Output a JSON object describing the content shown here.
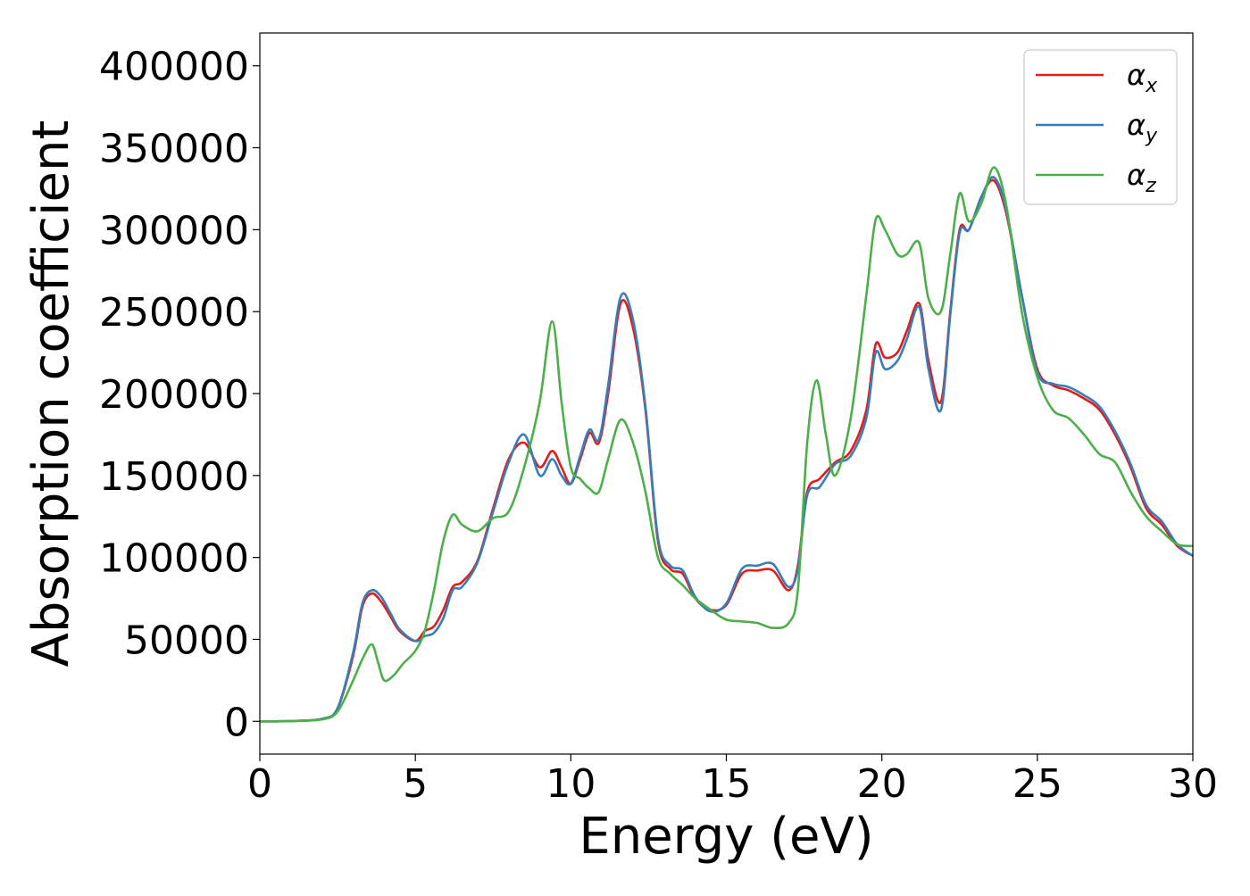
{
  "chart_data": {
    "type": "line",
    "title": "",
    "xlabel": "Energy (eV)",
    "ylabel": "Absorption coefficient",
    "xlim": [
      0,
      30
    ],
    "ylim": [
      -20000,
      420000
    ],
    "xticks": [
      0,
      5,
      10,
      15,
      20,
      25,
      30
    ],
    "xtick_labels": [
      "0",
      "5",
      "10",
      "15",
      "20",
      "25",
      "30"
    ],
    "yticks": [
      0,
      50000,
      100000,
      150000,
      200000,
      250000,
      300000,
      350000,
      400000
    ],
    "ytick_labels": [
      "0",
      "50000",
      "100000",
      "150000",
      "200000",
      "250000",
      "300000",
      "350000",
      "400000"
    ],
    "grid": false,
    "legend_position": "top-right",
    "series": [
      {
        "name": "αx",
        "legend_base": "α",
        "legend_sub": "x",
        "color": "#e41a1c",
        "x": [
          0,
          1,
          2,
          2.5,
          3,
          3.3,
          3.6,
          3.9,
          4.2,
          4.5,
          5.0,
          5.3,
          5.6,
          5.9,
          6.2,
          6.5,
          7.0,
          7.5,
          8.0,
          8.5,
          9.0,
          9.4,
          9.7,
          10.0,
          10.3,
          10.6,
          10.9,
          11.2,
          11.6,
          12.0,
          12.4,
          12.8,
          13.2,
          13.6,
          14.0,
          14.5,
          15.0,
          15.5,
          16.0,
          16.5,
          17.0,
          17.3,
          17.6,
          18.0,
          18.5,
          19.0,
          19.5,
          19.8,
          20.1,
          20.5,
          20.8,
          21.2,
          21.5,
          21.9,
          22.2,
          22.5,
          22.8,
          23.2,
          23.6,
          24.0,
          24.5,
          25.0,
          25.5,
          26.0,
          26.5,
          27.0,
          27.5,
          28.0,
          28.5,
          29.0,
          29.5,
          30.0
        ],
        "y": [
          0,
          200,
          1500,
          8000,
          40000,
          70000,
          78000,
          73000,
          64000,
          55000,
          49000,
          55000,
          58000,
          68000,
          82000,
          85000,
          98000,
          130000,
          160000,
          170000,
          155000,
          165000,
          155000,
          145000,
          160000,
          176000,
          170000,
          200000,
          255000,
          240000,
          190000,
          110000,
          93000,
          90000,
          75000,
          68000,
          71000,
          90000,
          92000,
          92000,
          80000,
          95000,
          140000,
          148000,
          158000,
          165000,
          190000,
          230000,
          222000,
          225000,
          238000,
          255000,
          220000,
          195000,
          250000,
          300000,
          300000,
          320000,
          330000,
          310000,
          260000,
          215000,
          205000,
          202000,
          197000,
          190000,
          175000,
          155000,
          130000,
          120000,
          107000,
          101000
        ]
      },
      {
        "name": "αy",
        "legend_base": "α",
        "legend_sub": "y",
        "color": "#377eb8",
        "x": [
          0,
          1,
          2,
          2.5,
          3,
          3.3,
          3.6,
          3.9,
          4.2,
          4.5,
          5.0,
          5.3,
          5.6,
          5.9,
          6.2,
          6.5,
          7.0,
          7.5,
          8.0,
          8.5,
          9.0,
          9.4,
          9.7,
          10.0,
          10.3,
          10.6,
          10.9,
          11.2,
          11.6,
          12.0,
          12.4,
          12.8,
          13.2,
          13.6,
          14.0,
          14.5,
          15.0,
          15.5,
          16.0,
          16.5,
          17.0,
          17.3,
          17.6,
          18.0,
          18.5,
          19.0,
          19.5,
          19.8,
          20.1,
          20.5,
          20.8,
          21.2,
          21.5,
          21.9,
          22.2,
          22.5,
          22.8,
          23.2,
          23.6,
          24.0,
          24.5,
          25.0,
          25.5,
          26.0,
          26.5,
          27.0,
          27.5,
          28.0,
          28.5,
          29.0,
          29.5,
          30.0
        ],
        "y": [
          0,
          200,
          1500,
          8000,
          42000,
          72000,
          80000,
          76000,
          66000,
          56000,
          49000,
          52000,
          54000,
          63000,
          80000,
          82000,
          97000,
          128000,
          158000,
          175000,
          150000,
          160000,
          150000,
          145000,
          162000,
          178000,
          172000,
          205000,
          259000,
          245000,
          192000,
          112000,
          95000,
          92000,
          76000,
          67000,
          72000,
          93000,
          95000,
          96000,
          82000,
          93000,
          138000,
          143000,
          157000,
          162000,
          185000,
          225000,
          215000,
          220000,
          233000,
          253000,
          215000,
          190000,
          248000,
          298000,
          300000,
          320000,
          332000,
          312000,
          260000,
          213000,
          206000,
          204000,
          199000,
          192000,
          177000,
          157000,
          132000,
          122000,
          108000,
          101000
        ]
      },
      {
        "name": "αz",
        "legend_base": "α",
        "legend_sub": "z",
        "color": "#4daf4a",
        "x": [
          0,
          1,
          2,
          2.5,
          3,
          3.3,
          3.6,
          3.8,
          4.0,
          4.3,
          4.6,
          5.0,
          5.3,
          5.6,
          5.9,
          6.2,
          6.5,
          7.0,
          7.5,
          8.0,
          8.5,
          9.0,
          9.4,
          9.7,
          10.0,
          10.3,
          10.6,
          10.9,
          11.2,
          11.6,
          12.0,
          12.4,
          12.8,
          13.2,
          13.6,
          14.0,
          14.5,
          15.0,
          15.5,
          16.0,
          16.5,
          17.0,
          17.3,
          17.6,
          17.9,
          18.2,
          18.5,
          19.0,
          19.5,
          19.8,
          20.1,
          20.5,
          20.8,
          21.2,
          21.5,
          21.9,
          22.2,
          22.5,
          22.8,
          23.2,
          23.6,
          24.0,
          24.5,
          25.0,
          25.5,
          26.0,
          26.5,
          27.0,
          27.5,
          28.0,
          28.5,
          29.0,
          29.5,
          30.0
        ],
        "y": [
          0,
          200,
          1200,
          6000,
          25000,
          38000,
          47000,
          36000,
          25000,
          28000,
          35000,
          43000,
          55000,
          80000,
          110000,
          126000,
          120000,
          116000,
          124000,
          128000,
          155000,
          195000,
          244000,
          195000,
          155000,
          148000,
          142000,
          140000,
          160000,
          184000,
          170000,
          140000,
          100000,
          90000,
          83000,
          75000,
          68000,
          62000,
          61000,
          60000,
          57000,
          60000,
          80000,
          170000,
          208000,
          175000,
          150000,
          185000,
          260000,
          306000,
          300000,
          285000,
          285000,
          292000,
          258000,
          250000,
          285000,
          322000,
          305000,
          316000,
          338000,
          315000,
          250000,
          210000,
          190000,
          185000,
          175000,
          163000,
          158000,
          140000,
          125000,
          116000,
          108000,
          107000
        ]
      }
    ]
  }
}
